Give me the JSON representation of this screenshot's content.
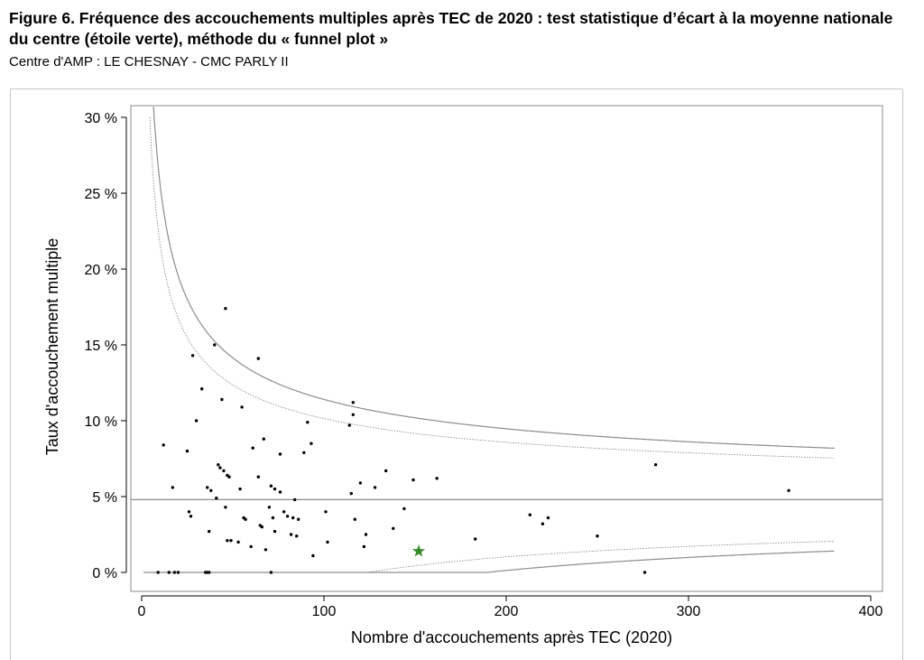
{
  "figure": {
    "title": "Figure 6. Fréquence des accouchements multiples après TEC de 2020 : test statistique d’écart à la moyenne nationale du centre (étoile verte), méthode du « funnel plot »",
    "subtitle": "Centre d'AMP : LE CHESNAY - CMC PARLY II"
  },
  "chart_data": {
    "type": "scatter",
    "title": "Figure 6. Fréquence des accouchements multiples après TEC de 2020 : test statistique d’écart à la moyenne nationale du centre (étoile verte), méthode du « funnel plot »",
    "subtitle": "Centre d'AMP : LE CHESNAY - CMC PARLY II",
    "xlabel": "Nombre d'accouchements après TEC (2020)",
    "ylabel": "Taux d'accouchement multiple",
    "xlim": [
      -10,
      405
    ],
    "ylim": [
      -1,
      31
    ],
    "x_ticks": [
      0,
      100,
      200,
      300,
      400
    ],
    "x_tick_labels": [
      "0",
      "100",
      "200",
      "300",
      "400"
    ],
    "y_ticks": [
      0,
      5,
      10,
      15,
      20,
      25,
      30
    ],
    "y_tick_labels": [
      "0 %",
      "5 %",
      "10 %",
      "15 %",
      "20 %",
      "25 %",
      "30 %"
    ],
    "grid": false,
    "national_mean": 4.8,
    "funnel_x_max": 380,
    "centre": {
      "x": 152,
      "y": 1.4,
      "color": "#3a8a2a",
      "marker": "star"
    },
    "point_color": "#000000",
    "line_color": "#8c8c8c",
    "points": [
      [
        9,
        0
      ],
      [
        12,
        8.4
      ],
      [
        15,
        0
      ],
      [
        17,
        5.6
      ],
      [
        18,
        0
      ],
      [
        20,
        0
      ],
      [
        25,
        8
      ],
      [
        26,
        4
      ],
      [
        27,
        3.7
      ],
      [
        28,
        14.3
      ],
      [
        30,
        10
      ],
      [
        33,
        12.1
      ],
      [
        35,
        0
      ],
      [
        36,
        5.6
      ],
      [
        36,
        0
      ],
      [
        37,
        2.7
      ],
      [
        37,
        0
      ],
      [
        38,
        5.4
      ],
      [
        40,
        15
      ],
      [
        41,
        4.9
      ],
      [
        42,
        7.1
      ],
      [
        43,
        6.9
      ],
      [
        44,
        11.4
      ],
      [
        45,
        6.7
      ],
      [
        46,
        17.4
      ],
      [
        46,
        4.3
      ],
      [
        47,
        6.4
      ],
      [
        47,
        2.1
      ],
      [
        48,
        6.3
      ],
      [
        49,
        2.1
      ],
      [
        53,
        2
      ],
      [
        54,
        5.5
      ],
      [
        55,
        10.9
      ],
      [
        56,
        3.6
      ],
      [
        57,
        3.5
      ],
      [
        60,
        1.7
      ],
      [
        61,
        8.2
      ],
      [
        64,
        14.1
      ],
      [
        64,
        6.3
      ],
      [
        65,
        3.1
      ],
      [
        66,
        3
      ],
      [
        67,
        8.8
      ],
      [
        68,
        1.5
      ],
      [
        70,
        4.3
      ],
      [
        71,
        5.7
      ],
      [
        71,
        0
      ],
      [
        72,
        3.6
      ],
      [
        73,
        5.5
      ],
      [
        73,
        2.7
      ],
      [
        76,
        7.8
      ],
      [
        76,
        5.3
      ],
      [
        78,
        4
      ],
      [
        80,
        3.7
      ],
      [
        82,
        2.5
      ],
      [
        83,
        3.6
      ],
      [
        84,
        4.8
      ],
      [
        85,
        2.4
      ],
      [
        86,
        3.5
      ],
      [
        89,
        7.9
      ],
      [
        91,
        9.9
      ],
      [
        93,
        8.5
      ],
      [
        94,
        1.1
      ],
      [
        101,
        4
      ],
      [
        102,
        2
      ],
      [
        114,
        9.7
      ],
      [
        115,
        5.2
      ],
      [
        116,
        10.4
      ],
      [
        116,
        11.2
      ],
      [
        117,
        3.5
      ],
      [
        120,
        5.9
      ],
      [
        122,
        1.7
      ],
      [
        123,
        2.5
      ],
      [
        128,
        5.6
      ],
      [
        134,
        6.7
      ],
      [
        138,
        2.9
      ],
      [
        144,
        4.2
      ],
      [
        149,
        6.1
      ],
      [
        162,
        6.2
      ],
      [
        183,
        2.2
      ],
      [
        213,
        3.8
      ],
      [
        220,
        3.2
      ],
      [
        223,
        3.6
      ],
      [
        250,
        2.4
      ],
      [
        276,
        0
      ],
      [
        282,
        7.1
      ],
      [
        355,
        5.4
      ]
    ],
    "funnel_curves": [
      {
        "style": "solid",
        "z": 3.09,
        "position": "upper"
      },
      {
        "style": "dotted",
        "z": 2.5,
        "position": "upper"
      },
      {
        "style": "dotted",
        "z": 2.5,
        "position": "lower"
      },
      {
        "style": "solid",
        "z": 3.09,
        "position": "lower"
      }
    ]
  }
}
